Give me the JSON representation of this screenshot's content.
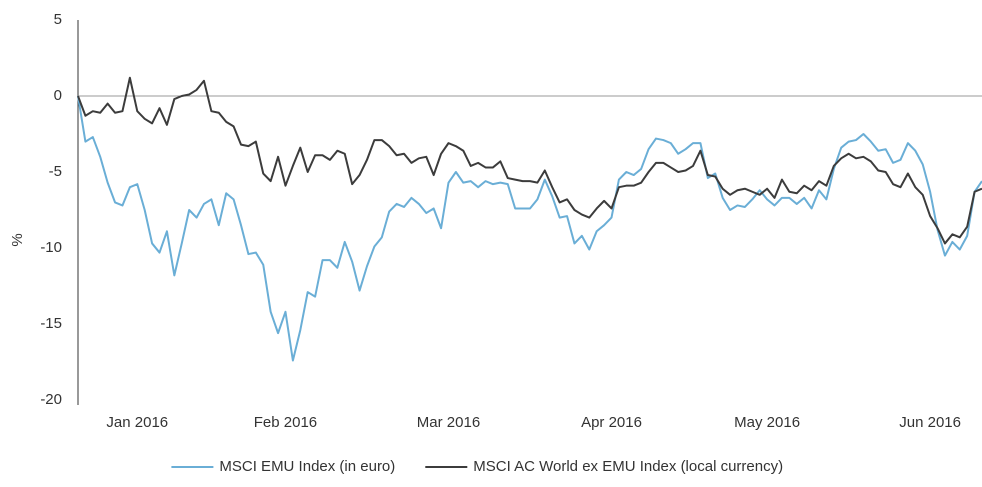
{
  "chart_data": {
    "type": "line",
    "y_label": "%",
    "categories": [
      null,
      null,
      null,
      null,
      null,
      null,
      null,
      null,
      "Jan 2016",
      null,
      null,
      null,
      null,
      null,
      null,
      null,
      null,
      null,
      null,
      null,
      null,
      null,
      null,
      null,
      null,
      null,
      null,
      null,
      "Feb 2016",
      null,
      null,
      null,
      null,
      null,
      null,
      null,
      null,
      null,
      null,
      null,
      null,
      null,
      null,
      null,
      null,
      null,
      null,
      null,
      null,
      null,
      "Mar 2016",
      null,
      null,
      null,
      null,
      null,
      null,
      null,
      null,
      null,
      null,
      null,
      null,
      null,
      null,
      null,
      null,
      null,
      null,
      null,
      null,
      null,
      "Apr 2016",
      null,
      null,
      null,
      null,
      null,
      null,
      null,
      null,
      null,
      null,
      null,
      null,
      null,
      null,
      null,
      null,
      null,
      null,
      null,
      null,
      "May 2016",
      null,
      null,
      null,
      null,
      null,
      null,
      null,
      null,
      null,
      null,
      null,
      null,
      null,
      null,
      null,
      null,
      null,
      null,
      null,
      null,
      null,
      "Jun 2016",
      null,
      null,
      null,
      null,
      null,
      null,
      null
    ],
    "series": [
      {
        "name": "MSCI EMU Index (in euro)",
        "color": "#6aaed6",
        "values": [
          0,
          -3,
          -2.7,
          -4,
          -5.7,
          -7,
          -7.2,
          -6,
          -5.8,
          -7.5,
          -9.7,
          -10.3,
          -8.9,
          -11.8,
          -9.7,
          -7.5,
          -8,
          -7.1,
          -6.8,
          -8.5,
          -6.4,
          -6.8,
          -8.5,
          -10.4,
          -10.3,
          -11.1,
          -14.2,
          -15.6,
          -14.2,
          -17.4,
          -15.4,
          -12.9,
          -13.2,
          -10.8,
          -10.8,
          -11.3,
          -9.6,
          -10.9,
          -12.8,
          -11.2,
          -9.9,
          -9.3,
          -7.6,
          -7.1,
          -7.3,
          -6.7,
          -7.1,
          -7.7,
          -7.4,
          -8.7,
          -5.7,
          -5,
          -5.7,
          -5.6,
          -6,
          -5.6,
          -5.8,
          -5.7,
          -5.8,
          -7.4,
          -7.4,
          -7.4,
          -6.8,
          -5.5,
          -6.6,
          -8,
          -7.9,
          -9.7,
          -9.2,
          -10.1,
          -8.9,
          -8.5,
          -8,
          -5.5,
          -5,
          -5.2,
          -4.8,
          -3.5,
          -2.8,
          -2.9,
          -3.1,
          -3.8,
          -3.5,
          -3.1,
          -3.1,
          -5.4,
          -5.1,
          -6.7,
          -7.5,
          -7.2,
          -7.3,
          -6.8,
          -6.2,
          -6.8,
          -7.2,
          -6.7,
          -6.7,
          -7.1,
          -6.7,
          -7.4,
          -6.2,
          -6.8,
          -4.8,
          -3.4,
          -3,
          -2.9,
          -2.5,
          -3,
          -3.6,
          -3.5,
          -4.4,
          -4.2,
          -3.1,
          -3.6,
          -4.5,
          -6.3,
          -8.8,
          -10.5,
          -9.6,
          -10.1,
          -9.2,
          -6.3,
          -5.6
        ]
      },
      {
        "name": "MSCI AC World ex EMU Index (local currency)",
        "color": "#3c3c3c",
        "values": [
          0,
          -1.3,
          -1,
          -1.1,
          -0.5,
          -1.1,
          -1,
          1.2,
          -1,
          -1.5,
          -1.8,
          -0.8,
          -1.9,
          -0.2,
          0,
          0.1,
          0.4,
          1,
          -1,
          -1.1,
          -1.7,
          -2,
          -3.2,
          -3.3,
          -3,
          -5.1,
          -5.6,
          -4,
          -5.9,
          -4.6,
          -3.4,
          -5,
          -3.9,
          -3.9,
          -4.2,
          -3.6,
          -3.8,
          -5.8,
          -5.2,
          -4.2,
          -2.9,
          -2.9,
          -3.3,
          -3.9,
          -3.8,
          -4.4,
          -4.1,
          -4,
          -5.2,
          -3.8,
          -3.1,
          -3.3,
          -3.6,
          -4.6,
          -4.4,
          -4.7,
          -4.7,
          -4.3,
          -5.4,
          -5.5,
          -5.6,
          -5.6,
          -5.7,
          -4.9,
          -6,
          -7,
          -6.8,
          -7.5,
          -7.8,
          -8,
          -7.4,
          -6.9,
          -7.4,
          -6,
          -5.9,
          -5.9,
          -5.7,
          -5,
          -4.4,
          -4.4,
          -4.7,
          -5,
          -4.9,
          -4.6,
          -3.6,
          -5.2,
          -5.3,
          -6.1,
          -6.5,
          -6.2,
          -6.1,
          -6.3,
          -6.5,
          -6.1,
          -6.7,
          -5.5,
          -6.3,
          -6.4,
          -5.9,
          -6.2,
          -5.6,
          -5.9,
          -4.6,
          -4.1,
          -3.8,
          -4.1,
          -4,
          -4.3,
          -4.9,
          -5,
          -5.8,
          -6,
          -5.1,
          -6,
          -6.5,
          -7.9,
          -8.7,
          -9.7,
          -9.1,
          -9.3,
          -8.6,
          -6.3,
          -6.1
        ]
      }
    ],
    "ylim": [
      -20,
      5
    ],
    "yticks": [
      -20,
      -15,
      -10,
      -5,
      0,
      5
    ],
    "grid": false
  }
}
